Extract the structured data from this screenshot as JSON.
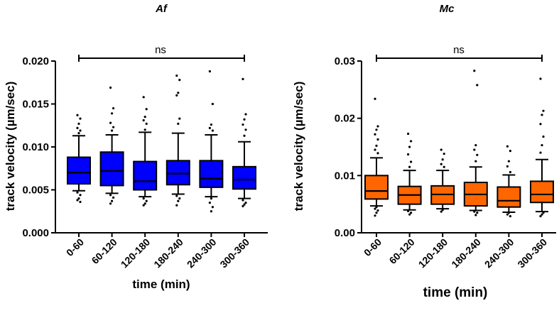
{
  "chart_data": [
    {
      "type": "box",
      "title": "Af",
      "ylabel": "track velocity (µm/sec)",
      "xlabel": "time (min)",
      "ylim": [
        0,
        0.02
      ],
      "yticks": [
        0.0,
        0.005,
        0.01,
        0.015,
        0.02
      ],
      "ytick_labels": [
        "0.000",
        "0.005",
        "0.010",
        "0.015",
        "0.020"
      ],
      "categories": [
        "0-60",
        "60-120",
        "120-180",
        "180-240",
        "240-300",
        "300-360"
      ],
      "box_color": "#0000ff",
      "annotation": "ns",
      "boxes": [
        {
          "whisker_low": 0.0049,
          "q1": 0.0057,
          "median": 0.007,
          "q3": 0.0088,
          "whisker_high": 0.0113,
          "outliers": [
            0.0137,
            0.0133,
            0.0127,
            0.0122,
            0.0119,
            0.0116,
            0.0047,
            0.0044,
            0.004,
            0.0038,
            0.0036
          ]
        },
        {
          "whisker_low": 0.0046,
          "q1": 0.0055,
          "median": 0.0072,
          "q3": 0.0094,
          "whisker_high": 0.0114,
          "outliers": [
            0.0169,
            0.0145,
            0.0139,
            0.0128,
            0.0123,
            0.0119,
            0.0044,
            0.0041,
            0.0037,
            0.0034
          ]
        },
        {
          "whisker_low": 0.0042,
          "q1": 0.005,
          "median": 0.006,
          "q3": 0.0083,
          "whisker_high": 0.0117,
          "outliers": [
            0.0158,
            0.0144,
            0.0135,
            0.0131,
            0.0127,
            0.012,
            0.004,
            0.0037,
            0.0034,
            0.0032
          ]
        },
        {
          "whisker_low": 0.0045,
          "q1": 0.0056,
          "median": 0.0069,
          "q3": 0.0084,
          "whisker_high": 0.0116,
          "outliers": [
            0.0183,
            0.0178,
            0.0163,
            0.016,
            0.0133,
            0.0127,
            0.0043,
            0.004,
            0.0037,
            0.0032
          ]
        },
        {
          "whisker_low": 0.0042,
          "q1": 0.0053,
          "median": 0.0063,
          "q3": 0.0084,
          "whisker_high": 0.0114,
          "outliers": [
            0.0188,
            0.015,
            0.0126,
            0.0122,
            0.0119,
            0.004,
            0.0035,
            0.003,
            0.0025
          ]
        },
        {
          "whisker_low": 0.004,
          "q1": 0.0051,
          "median": 0.0062,
          "q3": 0.0077,
          "whisker_high": 0.0106,
          "outliers": [
            0.0179,
            0.0138,
            0.0132,
            0.0126,
            0.012,
            0.0113,
            0.0038,
            0.0035,
            0.0033,
            0.0031
          ]
        }
      ]
    },
    {
      "type": "box",
      "title": "Mc",
      "ylabel": "track velocity (µm/sec)",
      "xlabel": "time (min)",
      "ylim": [
        0,
        0.03
      ],
      "yticks": [
        0.0,
        0.01,
        0.02,
        0.03
      ],
      "ytick_labels": [
        "0.00",
        "0.01",
        "0.02",
        "0.03"
      ],
      "categories": [
        "0-60",
        "60-120",
        "120-180",
        "180-240",
        "240-300",
        "300-360"
      ],
      "box_color": "#ff6600",
      "annotation": "ns",
      "boxes": [
        {
          "whisker_low": 0.0047,
          "q1": 0.0059,
          "median": 0.0073,
          "q3": 0.01,
          "whisker_high": 0.0131,
          "outliers": [
            0.0234,
            0.0186,
            0.018,
            0.0172,
            0.0163,
            0.0152,
            0.0145,
            0.0139,
            0.0045,
            0.0042,
            0.0039,
            0.0035,
            0.003
          ]
        },
        {
          "whisker_low": 0.004,
          "q1": 0.005,
          "median": 0.0066,
          "q3": 0.0081,
          "whisker_high": 0.0109,
          "outliers": [
            0.0173,
            0.016,
            0.015,
            0.0137,
            0.0124,
            0.0115,
            0.0038,
            0.0035,
            0.0032
          ]
        },
        {
          "whisker_low": 0.0042,
          "q1": 0.005,
          "median": 0.0067,
          "q3": 0.0082,
          "whisker_high": 0.0109,
          "outliers": [
            0.0145,
            0.0138,
            0.0128,
            0.012,
            0.0115,
            0.004,
            0.0037
          ]
        },
        {
          "whisker_low": 0.0039,
          "q1": 0.0047,
          "median": 0.0067,
          "q3": 0.0088,
          "whisker_high": 0.0115,
          "outliers": [
            0.0283,
            0.0258,
            0.0153,
            0.0145,
            0.0136,
            0.0125,
            0.0037,
            0.0035,
            0.0031
          ]
        },
        {
          "whisker_low": 0.0036,
          "q1": 0.0045,
          "median": 0.0056,
          "q3": 0.008,
          "whisker_high": 0.0101,
          "outliers": [
            0.0151,
            0.0143,
            0.0125,
            0.0116,
            0.0106,
            0.0035,
            0.0032,
            0.0029
          ]
        },
        {
          "whisker_low": 0.0037,
          "q1": 0.0053,
          "median": 0.0067,
          "q3": 0.009,
          "whisker_high": 0.0128,
          "outliers": [
            0.0269,
            0.0213,
            0.0206,
            0.019,
            0.0168,
            0.0153,
            0.014,
            0.0035,
            0.0032,
            0.0029
          ]
        }
      ]
    }
  ]
}
